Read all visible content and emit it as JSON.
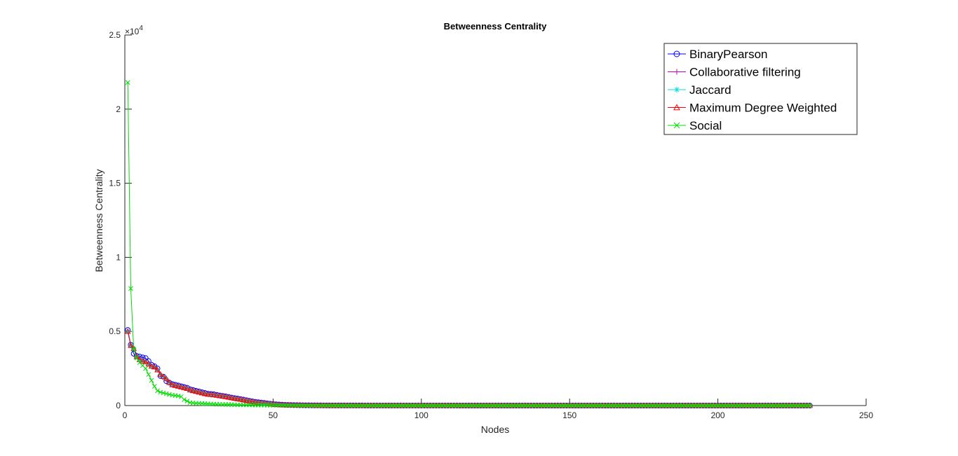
{
  "chart_data": {
    "type": "line",
    "title": "Betweenness Centrality",
    "xlabel": "Nodes",
    "ylabel": "Betweenness Centrality",
    "y_exponent_label": "×10",
    "y_exponent_power": "4",
    "xlim": [
      0,
      250
    ],
    "ylim": [
      0,
      25000
    ],
    "x_ticks": [
      0,
      50,
      100,
      150,
      200,
      250
    ],
    "x_tick_labels": [
      "0",
      "50",
      "100",
      "150",
      "200",
      "250"
    ],
    "y_ticks": [
      0,
      5000,
      10000,
      15000,
      20000,
      25000
    ],
    "y_tick_labels": [
      "0",
      "0.5",
      "1",
      "1.5",
      "2",
      "2.5"
    ],
    "grid": false,
    "legend_position": "top-right",
    "series": [
      {
        "name": "BinaryPearson",
        "color": "#0000ff",
        "marker": "circle",
        "x": [
          1,
          2,
          3,
          4,
          5,
          6,
          7,
          8,
          9,
          10,
          11,
          12,
          13,
          14,
          15,
          16,
          17,
          18,
          19,
          20,
          21,
          22,
          23,
          24,
          25,
          26,
          27,
          28,
          29,
          30,
          31,
          32,
          33,
          34,
          35,
          36,
          37,
          38,
          39,
          40,
          42,
          44,
          46,
          48,
          50,
          52,
          55,
          60,
          65,
          70,
          80,
          90,
          100,
          110,
          120,
          130,
          140,
          150,
          160,
          170,
          180,
          190,
          200,
          210,
          220,
          231
        ],
        "y": [
          5100,
          4100,
          3500,
          3350,
          3300,
          3250,
          3200,
          3000,
          2750,
          2650,
          2500,
          2000,
          1950,
          1650,
          1550,
          1450,
          1400,
          1350,
          1300,
          1250,
          1200,
          1100,
          1050,
          1000,
          950,
          900,
          850,
          800,
          780,
          760,
          720,
          680,
          650,
          620,
          580,
          540,
          500,
          470,
          440,
          400,
          320,
          250,
          200,
          150,
          100,
          70,
          40,
          20,
          10,
          5,
          3,
          2,
          1,
          1,
          0,
          0,
          0,
          0,
          0,
          0,
          0,
          0,
          0,
          0,
          0,
          0
        ]
      },
      {
        "name": "Collaborative filtering",
        "color": "#bf00bf",
        "marker": "plus",
        "x": [
          1,
          2,
          3,
          4,
          5,
          6,
          7,
          8,
          9,
          10,
          11,
          12,
          13,
          14,
          15,
          16,
          17,
          18,
          19,
          20,
          21,
          22,
          23,
          24,
          25,
          26,
          27,
          28,
          29,
          30,
          31,
          32,
          33,
          34,
          35,
          36,
          37,
          38,
          39,
          40,
          42,
          44,
          46,
          48,
          50,
          52,
          55,
          60,
          65,
          70,
          80,
          90,
          100,
          110,
          120,
          130,
          140,
          150,
          160,
          170,
          180,
          190,
          200,
          210,
          220,
          231
        ],
        "y": [
          5000,
          4050,
          3850,
          3300,
          3100,
          3000,
          2950,
          2800,
          2650,
          2600,
          2400,
          2100,
          1950,
          1800,
          1550,
          1400,
          1350,
          1300,
          1250,
          1200,
          1150,
          1050,
          1000,
          950,
          900,
          850,
          800,
          760,
          740,
          720,
          690,
          660,
          630,
          600,
          560,
          520,
          480,
          450,
          420,
          380,
          300,
          230,
          180,
          140,
          90,
          60,
          35,
          18,
          8,
          4,
          2,
          1,
          1,
          0,
          0,
          0,
          0,
          0,
          0,
          0,
          0,
          0,
          0,
          0,
          0,
          0
        ]
      },
      {
        "name": "Jaccard",
        "color": "#00dede",
        "marker": "asterisk",
        "x": [
          1,
          2,
          3,
          4,
          5,
          6,
          7,
          8,
          9,
          10,
          11,
          12,
          13,
          14,
          15,
          16,
          17,
          18,
          19,
          20,
          21,
          22,
          23,
          24,
          25,
          26,
          27,
          28,
          29,
          30,
          31,
          32,
          33,
          34,
          35,
          36,
          37,
          38,
          39,
          40,
          42,
          44,
          46,
          48,
          50,
          52,
          55,
          60,
          65,
          70,
          80,
          90,
          100,
          110,
          120,
          130,
          140,
          150,
          160,
          170,
          180,
          190,
          200,
          210,
          220,
          231
        ],
        "y": [
          5000,
          4050,
          3850,
          3300,
          3100,
          3000,
          2950,
          2800,
          2650,
          2600,
          2400,
          2100,
          1950,
          1800,
          1550,
          1400,
          1350,
          1300,
          1250,
          1200,
          1150,
          1050,
          1000,
          950,
          900,
          850,
          800,
          760,
          740,
          720,
          690,
          660,
          630,
          600,
          560,
          520,
          480,
          450,
          420,
          380,
          300,
          230,
          180,
          140,
          90,
          60,
          35,
          18,
          8,
          4,
          2,
          1,
          1,
          0,
          0,
          0,
          0,
          0,
          0,
          0,
          0,
          0,
          0,
          0,
          0,
          0
        ]
      },
      {
        "name": "Maximum Degree Weighted",
        "color": "#ff0000",
        "marker": "triangle",
        "x": [
          1,
          2,
          3,
          4,
          5,
          6,
          7,
          8,
          9,
          10,
          11,
          12,
          13,
          14,
          15,
          16,
          17,
          18,
          19,
          20,
          21,
          22,
          23,
          24,
          25,
          26,
          27,
          28,
          29,
          30,
          31,
          32,
          33,
          34,
          35,
          36,
          37,
          38,
          39,
          40,
          42,
          44,
          46,
          48,
          50,
          52,
          55,
          60,
          65,
          70,
          80,
          90,
          100,
          110,
          120,
          130,
          140,
          150,
          160,
          170,
          180,
          190,
          200,
          210,
          220,
          231
        ],
        "y": [
          5000,
          4050,
          3850,
          3300,
          3100,
          3000,
          2950,
          2800,
          2650,
          2600,
          2400,
          2100,
          1950,
          1800,
          1550,
          1400,
          1350,
          1300,
          1250,
          1200,
          1150,
          1050,
          1000,
          950,
          900,
          850,
          800,
          760,
          740,
          720,
          690,
          660,
          630,
          600,
          560,
          520,
          480,
          450,
          420,
          380,
          300,
          230,
          180,
          140,
          90,
          60,
          35,
          18,
          8,
          4,
          2,
          1,
          1,
          0,
          0,
          0,
          0,
          0,
          0,
          0,
          0,
          0,
          0,
          0,
          0,
          0
        ]
      },
      {
        "name": "Social",
        "color": "#00dd00",
        "marker": "x",
        "x": [
          1,
          2,
          3,
          4,
          5,
          6,
          7,
          8,
          9,
          10,
          11,
          12,
          13,
          14,
          15,
          16,
          17,
          18,
          19,
          20,
          21,
          22,
          23,
          24,
          25,
          26,
          27,
          28,
          29,
          30,
          31,
          32,
          33,
          34,
          35,
          36,
          37,
          38,
          39,
          40,
          42,
          44,
          46,
          48,
          50,
          52,
          55,
          60,
          65,
          70,
          80,
          90,
          100,
          110,
          120,
          130,
          140,
          150,
          160,
          170,
          180,
          190,
          200,
          210,
          220,
          231
        ],
        "y": [
          21800,
          7900,
          3800,
          3200,
          2900,
          2700,
          2500,
          2100,
          1700,
          1300,
          1000,
          900,
          850,
          800,
          750,
          700,
          680,
          650,
          600,
          400,
          300,
          200,
          180,
          160,
          150,
          140,
          130,
          120,
          110,
          100,
          90,
          85,
          80,
          75,
          70,
          65,
          60,
          55,
          50,
          45,
          40,
          35,
          30,
          25,
          20,
          15,
          10,
          5,
          3,
          2,
          1,
          0,
          0,
          0,
          0,
          0,
          0,
          0,
          0,
          0,
          0,
          0,
          0,
          0,
          0,
          0
        ]
      }
    ]
  }
}
